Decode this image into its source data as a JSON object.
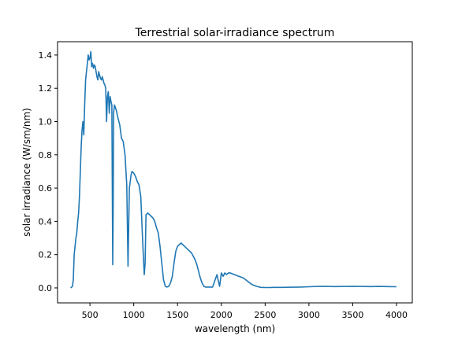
{
  "chart_data": {
    "type": "line",
    "title": "Terrestrial solar-irradiance spectrum",
    "xlabel": "wavelength (nm)",
    "ylabel": "solar irradiance (W/sm/nm)",
    "xlim": [
      130,
      4180
    ],
    "ylim": [
      -0.09,
      1.48
    ],
    "x_ticks": [
      500,
      1000,
      1500,
      2000,
      2500,
      3000,
      3500,
      4000
    ],
    "y_ticks": [
      0.0,
      0.2,
      0.4,
      0.6,
      0.8,
      1.0,
      1.2,
      1.4
    ],
    "x_tick_labels": [
      "500",
      "1000",
      "1500",
      "2000",
      "2500",
      "3000",
      "3500",
      "4000"
    ],
    "y_tick_labels": [
      "0.0",
      "0.2",
      "0.4",
      "0.6",
      "0.8",
      "1.0",
      "1.2",
      "1.4"
    ],
    "grid": false,
    "series": [
      {
        "color": "#1f77b4",
        "x": [
          280,
          300,
          310,
          320,
          330,
          340,
          350,
          360,
          370,
          380,
          390,
          400,
          410,
          420,
          430,
          440,
          450,
          460,
          470,
          480,
          490,
          500,
          510,
          520,
          530,
          540,
          550,
          560,
          570,
          580,
          590,
          600,
          610,
          620,
          630,
          640,
          650,
          660,
          670,
          680,
          690,
          700,
          710,
          720,
          730,
          740,
          750,
          760,
          765,
          770,
          780,
          800,
          820,
          840,
          860,
          880,
          900,
          920,
          935,
          950,
          970,
          980,
          1000,
          1020,
          1040,
          1060,
          1080,
          1100,
          1120,
          1130,
          1140,
          1160,
          1180,
          1200,
          1220,
          1240,
          1260,
          1280,
          1300,
          1320,
          1340,
          1360,
          1380,
          1400,
          1420,
          1440,
          1460,
          1480,
          1500,
          1520,
          1540,
          1560,
          1580,
          1600,
          1620,
          1640,
          1660,
          1680,
          1700,
          1720,
          1740,
          1760,
          1780,
          1800,
          1820,
          1850,
          1900,
          1950,
          1980,
          2000,
          2020,
          2040,
          2060,
          2080,
          2100,
          2150,
          2200,
          2250,
          2300,
          2350,
          2400,
          2450,
          2500,
          2550,
          2600,
          2700,
          2800,
          2900,
          3000,
          3100,
          3200,
          3300,
          3400,
          3500,
          3600,
          3700,
          3800,
          3900,
          4000
        ],
        "y": [
          0.0,
          0.01,
          0.05,
          0.2,
          0.25,
          0.3,
          0.33,
          0.4,
          0.45,
          0.55,
          0.7,
          0.85,
          0.95,
          1.0,
          0.92,
          1.1,
          1.25,
          1.3,
          1.35,
          1.4,
          1.37,
          1.38,
          1.42,
          1.33,
          1.35,
          1.32,
          1.34,
          1.33,
          1.3,
          1.27,
          1.25,
          1.3,
          1.28,
          1.26,
          1.25,
          1.27,
          1.25,
          1.23,
          1.22,
          1.2,
          1.0,
          1.15,
          1.18,
          1.05,
          1.15,
          1.12,
          1.1,
          0.14,
          0.5,
          1.05,
          1.1,
          1.07,
          1.02,
          0.98,
          0.9,
          0.88,
          0.8,
          0.62,
          0.13,
          0.6,
          0.68,
          0.7,
          0.69,
          0.67,
          0.64,
          0.62,
          0.55,
          0.3,
          0.08,
          0.15,
          0.44,
          0.45,
          0.44,
          0.43,
          0.42,
          0.4,
          0.36,
          0.33,
          0.25,
          0.15,
          0.05,
          0.01,
          0.005,
          0.01,
          0.03,
          0.07,
          0.15,
          0.22,
          0.25,
          0.26,
          0.27,
          0.26,
          0.25,
          0.24,
          0.23,
          0.22,
          0.21,
          0.19,
          0.17,
          0.14,
          0.1,
          0.06,
          0.03,
          0.01,
          0.005,
          0.005,
          0.005,
          0.08,
          0.01,
          0.09,
          0.07,
          0.09,
          0.08,
          0.09,
          0.09,
          0.08,
          0.07,
          0.06,
          0.04,
          0.02,
          0.01,
          0.003,
          0.002,
          0.002,
          0.003,
          0.003,
          0.004,
          0.005,
          0.007,
          0.009,
          0.01,
          0.008,
          0.009,
          0.01,
          0.009,
          0.008,
          0.009,
          0.008,
          0.007
        ]
      }
    ]
  }
}
